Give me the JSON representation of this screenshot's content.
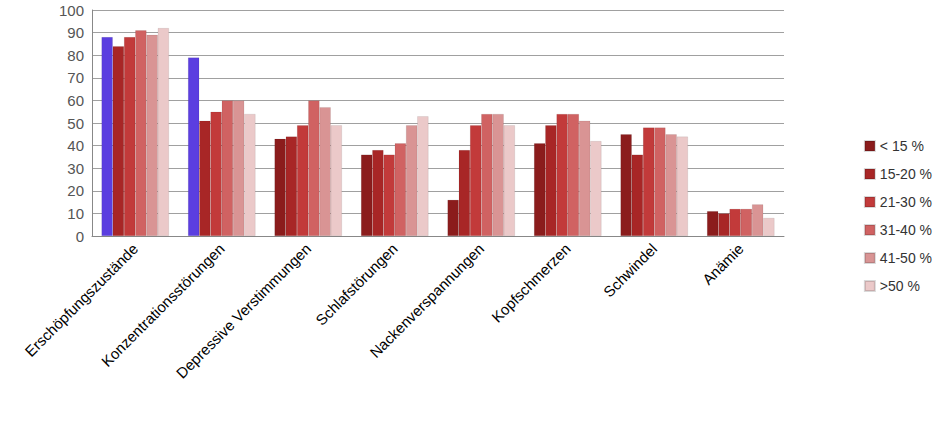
{
  "chart_data": {
    "type": "bar",
    "categories": [
      "Erschöpfungszustände",
      "Konzentrationsstörungen",
      "Depressive Verstimmungen",
      "Schlafstörungen",
      "Nackenverspannungen",
      "Kopfschmerzen",
      "Schwindel",
      "Anämie"
    ],
    "series": [
      {
        "name": "< 15 %",
        "color": "#8b1c1c",
        "colors": [
          "#5b3ee0",
          "#5b3ee0",
          "#8b1c1c",
          "#8b1c1c",
          "#8b1c1c",
          "#8b1c1c",
          "#8b1c1c",
          "#8b1c1c"
        ],
        "values": [
          88,
          79,
          43,
          36,
          16,
          41,
          45,
          11
        ]
      },
      {
        "name": "15-20 %",
        "color": "#a82626",
        "values": [
          84,
          51,
          44,
          38,
          38,
          49,
          36,
          10
        ]
      },
      {
        "name": "21-30 %",
        "color": "#c23a3a",
        "values": [
          88,
          55,
          49,
          36,
          49,
          54,
          48,
          12
        ]
      },
      {
        "name": "31-40 %",
        "color": "#d06262",
        "values": [
          91,
          60,
          60,
          41,
          54,
          54,
          48,
          12
        ]
      },
      {
        "name": "41-50 %",
        "color": "#d99494",
        "values": [
          89,
          60,
          57,
          49,
          54,
          51,
          45,
          14
        ]
      },
      {
        "name": ">50 %",
        "color": "#ebc9c9",
        "values": [
          92,
          54,
          49,
          53,
          49,
          42,
          44,
          8
        ]
      }
    ],
    "ylim": [
      0,
      100
    ],
    "yticks": [
      0,
      10,
      20,
      30,
      40,
      50,
      60,
      70,
      80,
      90,
      100
    ],
    "grid": true,
    "legend": "right"
  }
}
